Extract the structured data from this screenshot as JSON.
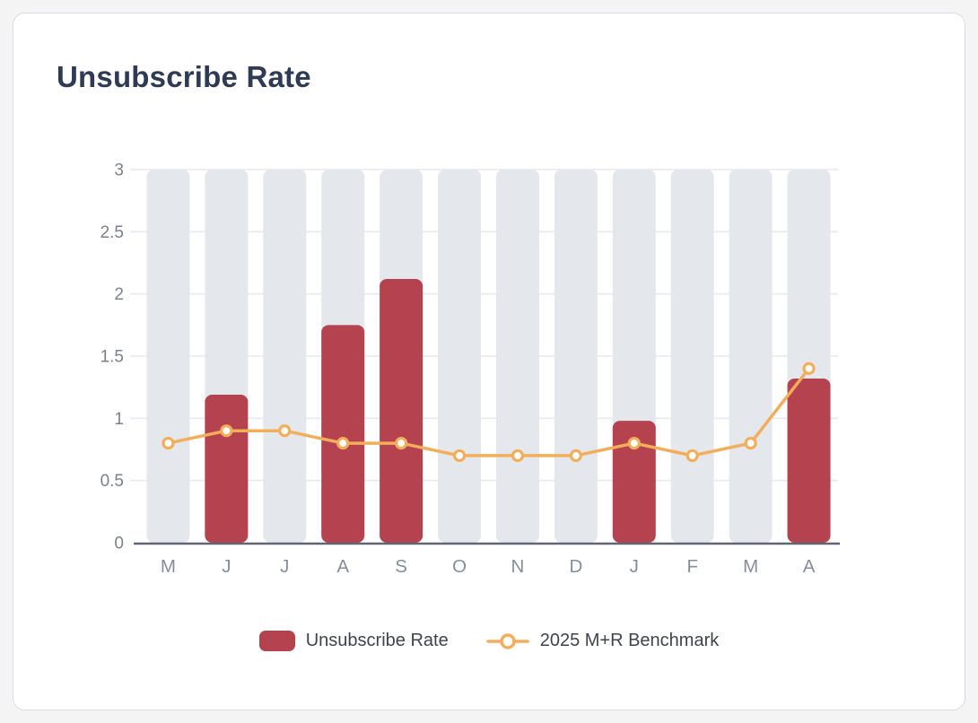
{
  "chart_data": {
    "type": "bar+line",
    "title": "Unsubscribe Rate",
    "categories": [
      "M",
      "J",
      "J",
      "A",
      "S",
      "O",
      "N",
      "D",
      "J",
      "F",
      "M",
      "A"
    ],
    "series": [
      {
        "name": "Unsubscribe Rate",
        "type": "bar",
        "color": "#b4424f",
        "values": [
          null,
          1.19,
          null,
          1.75,
          2.12,
          null,
          null,
          null,
          0.98,
          null,
          null,
          1.32
        ]
      },
      {
        "name": "2025 M+R Benchmark",
        "type": "line",
        "color": "#f3ae5b",
        "marker_fill": "#ffffff",
        "values": [
          0.8,
          0.9,
          0.9,
          0.8,
          0.8,
          0.7,
          0.7,
          0.7,
          0.8,
          0.7,
          0.8,
          1.4
        ]
      }
    ],
    "ylim": [
      0,
      3
    ],
    "yticks": [
      0,
      0.5,
      1,
      1.5,
      2,
      2.5,
      3
    ],
    "grid": true,
    "legend_position": "bottom",
    "styles": {
      "band_color": "#e4e7eb",
      "grid_color": "#e7e9f1",
      "axis_color": "#616771",
      "ytick_label_color": "#7b818c",
      "xtick_label_color": "#878d98",
      "title_color": "#2f3b55",
      "legend_text_color": "#3f444c",
      "card_background": "#ffffff",
      "card_border": "#d7dce2",
      "page_background": "#f4f4f5"
    }
  }
}
